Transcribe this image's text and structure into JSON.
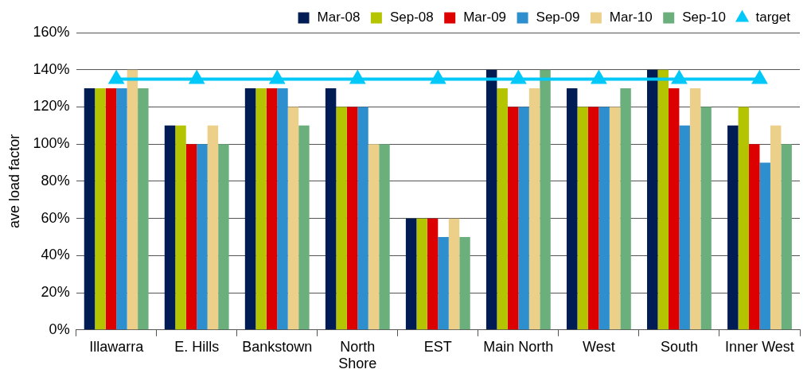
{
  "chart_data": {
    "type": "bar",
    "ylabel": "ave load factor",
    "categories": [
      "Illawarra",
      "E. Hills",
      "Bankstown",
      "North Shore",
      "EST",
      "Main North",
      "West",
      "South",
      "Inner West"
    ],
    "series": [
      {
        "name": "Mar-08",
        "color": "#001c54",
        "values": [
          130,
          110,
          130,
          130,
          60,
          140,
          130,
          140,
          110
        ]
      },
      {
        "name": "Sep-08",
        "color": "#b5c400",
        "values": [
          130,
          110,
          130,
          120,
          60,
          130,
          120,
          140,
          120
        ]
      },
      {
        "name": "Mar-09",
        "color": "#dc0000",
        "values": [
          130,
          100,
          130,
          120,
          60,
          120,
          120,
          130,
          100
        ]
      },
      {
        "name": "Sep-09",
        "color": "#2e8fce",
        "values": [
          130,
          100,
          130,
          120,
          50,
          120,
          120,
          110,
          90
        ]
      },
      {
        "name": "Mar-10",
        "color": "#ecd089",
        "values": [
          140,
          110,
          120,
          100,
          60,
          130,
          120,
          130,
          110
        ]
      },
      {
        "name": "Sep-10",
        "color": "#6baf7c",
        "values": [
          130,
          100,
          110,
          100,
          50,
          140,
          130,
          120,
          100
        ]
      },
      {
        "name": "target",
        "type": "line",
        "color": "#00c8f8",
        "marker": "triangle",
        "values": [
          135,
          135,
          135,
          135,
          135,
          135,
          135,
          135,
          135
        ]
      }
    ],
    "ylim": [
      0,
      160
    ],
    "yticks": [
      {
        "value": 0,
        "label": "0%"
      },
      {
        "value": 20,
        "label": "20%"
      },
      {
        "value": 40,
        "label": "40%"
      },
      {
        "value": 60,
        "label": "60%"
      },
      {
        "value": 80,
        "label": "80%"
      },
      {
        "value": 100,
        "label": "100%"
      },
      {
        "value": 120,
        "label": "120%"
      },
      {
        "value": 140,
        "label": "140%"
      },
      {
        "value": 160,
        "label": "160%"
      }
    ],
    "grid": "y",
    "legend": "top right"
  }
}
